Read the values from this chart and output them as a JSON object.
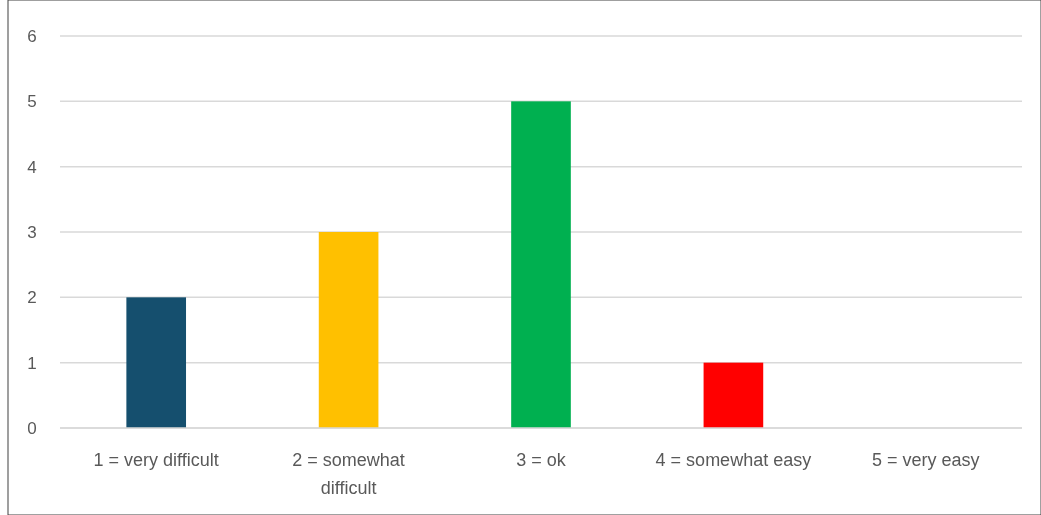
{
  "chart_data": {
    "type": "bar",
    "categories": [
      "1 = very difficult",
      "2 = somewhat difficult",
      "3 = ok",
      "4 = somewhat easy",
      "5 = very easy"
    ],
    "values": [
      2,
      3,
      5,
      1,
      0
    ],
    "colors": [
      "#154f6e",
      "#ffc000",
      "#00b050",
      "#ff0000",
      "#4472c4"
    ],
    "ylim": [
      0,
      6
    ],
    "yticks": [
      0,
      1,
      2,
      3,
      4,
      5,
      6
    ],
    "grid": "y"
  }
}
